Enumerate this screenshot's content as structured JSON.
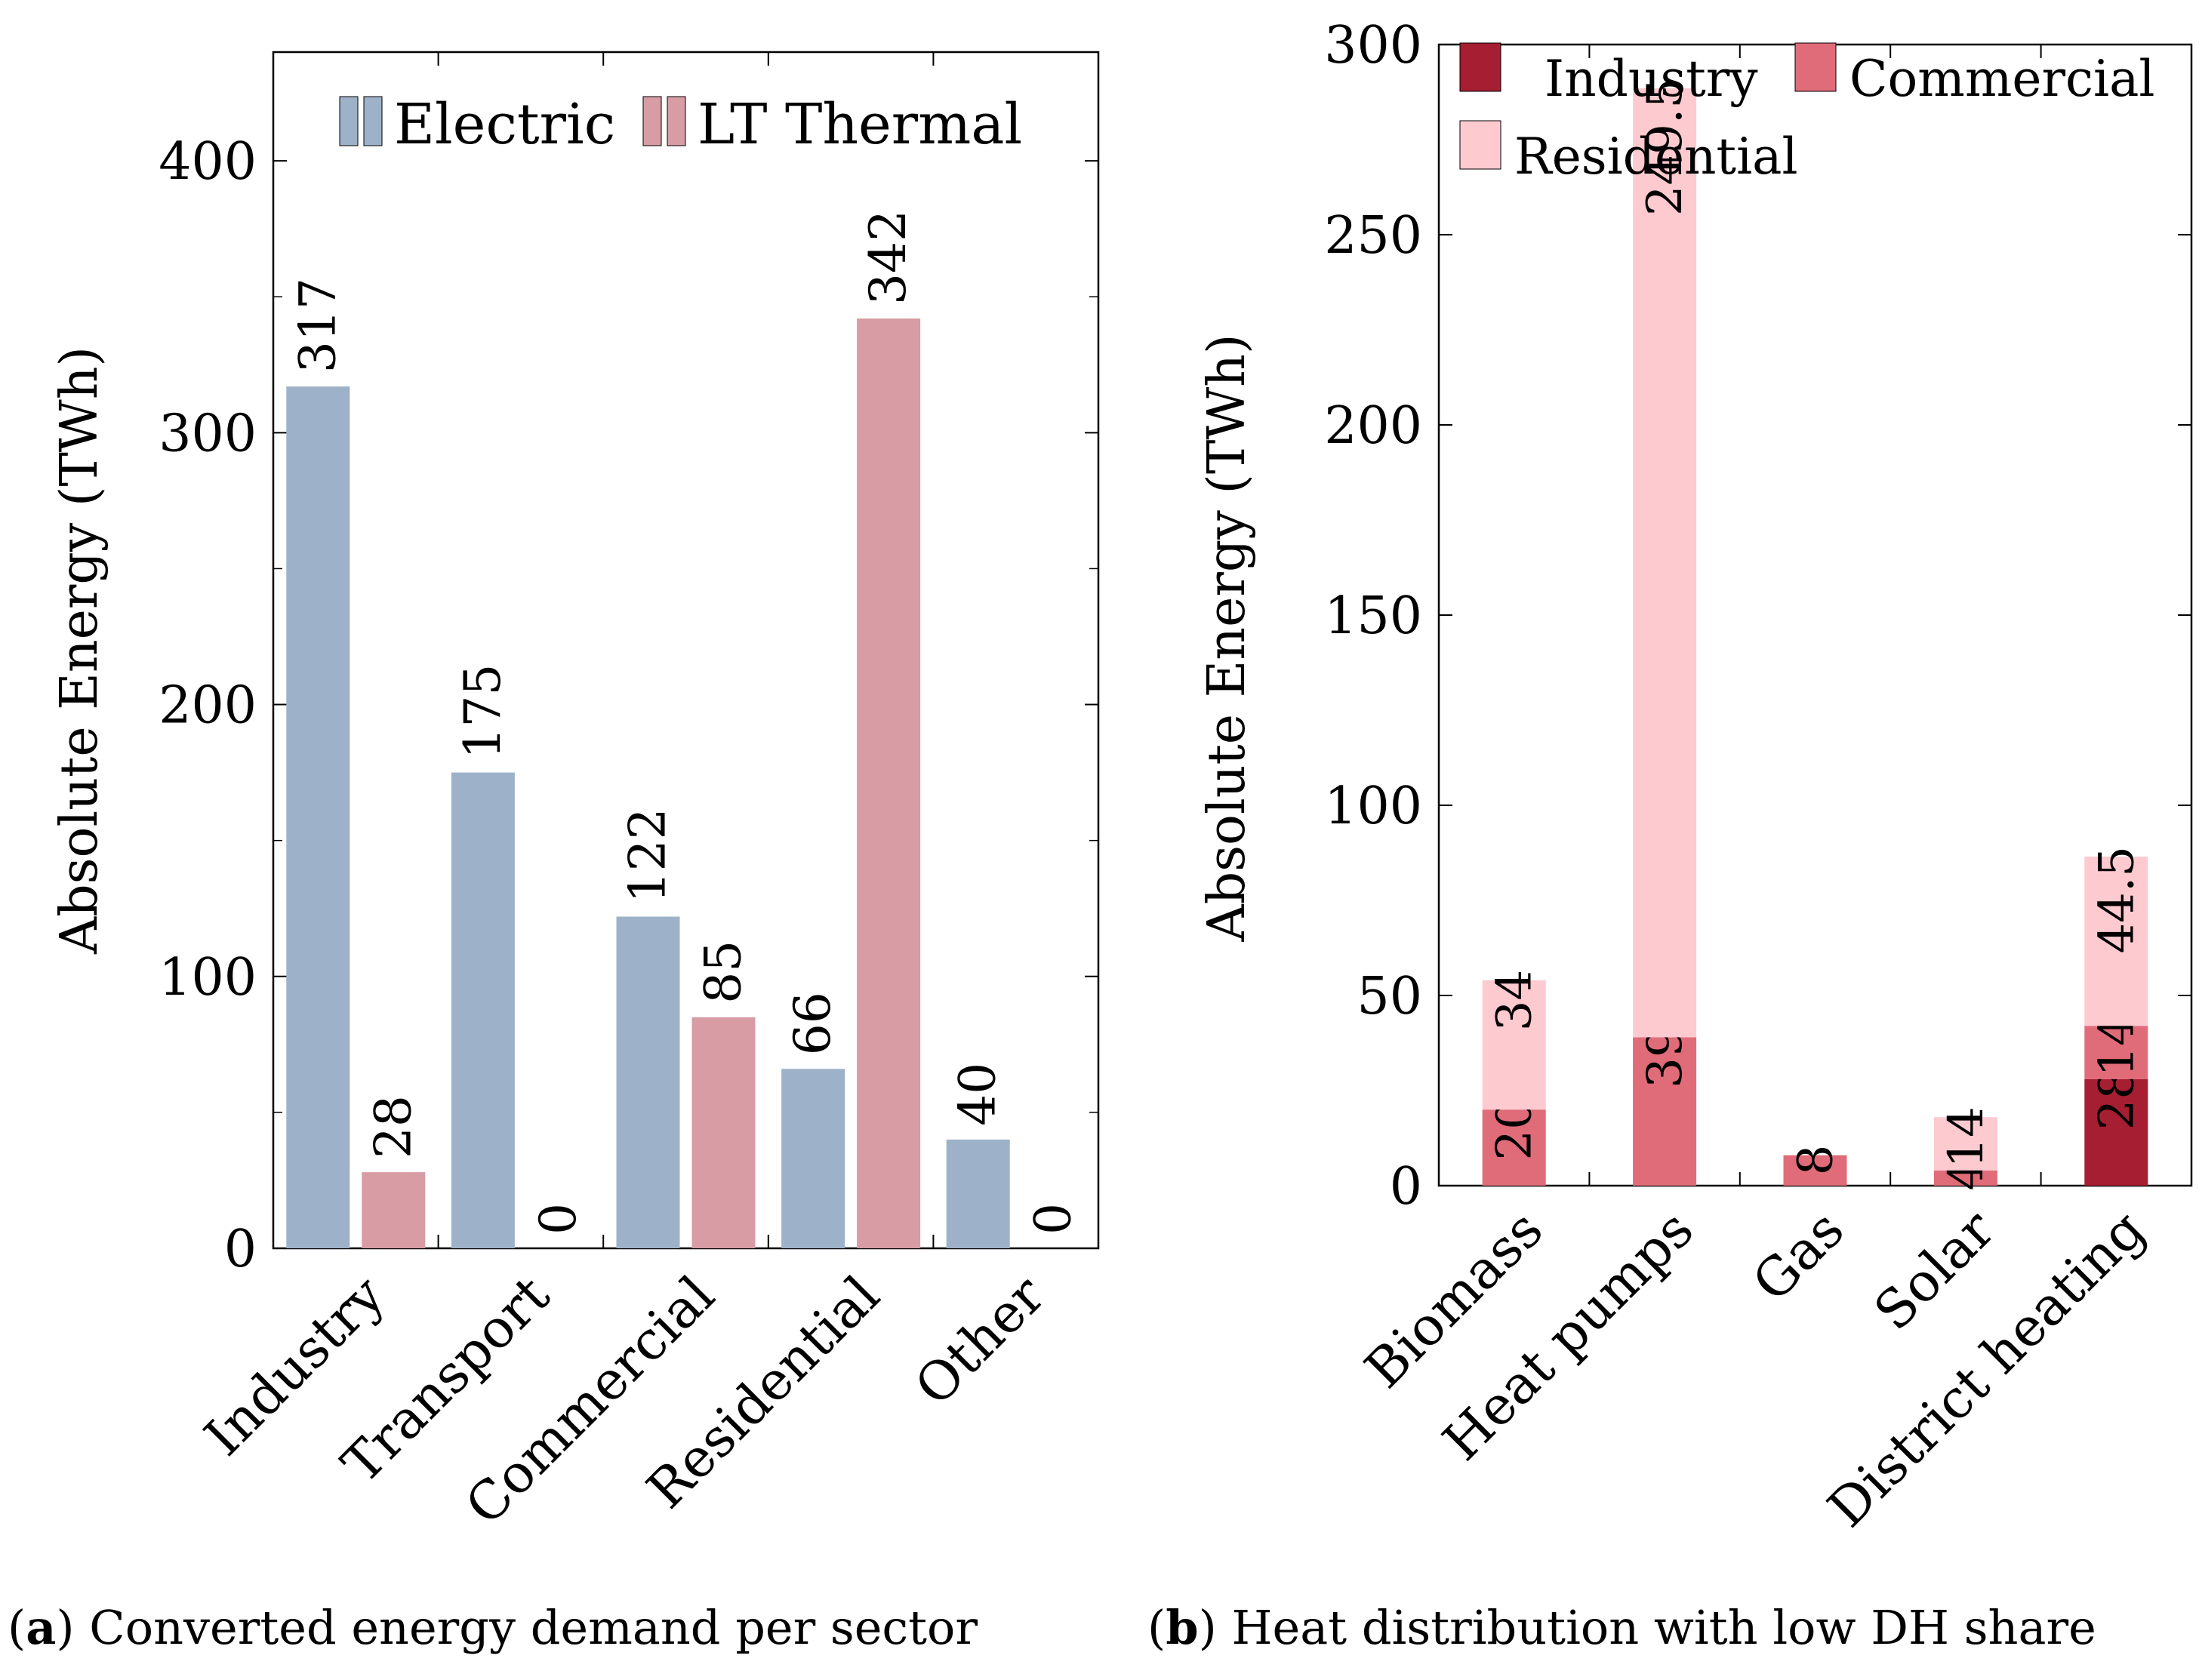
{
  "chart_data": [
    {
      "type": "bar",
      "subtype": "grouped",
      "caption_letter": "a",
      "caption_text": "Converted energy demand per sector",
      "ylabel": "Absolute Energy (TWh)",
      "xlabel": "",
      "ylim": [
        0,
        440
      ],
      "yticks": [
        0,
        100,
        200,
        300,
        400
      ],
      "grid": false,
      "legend_position": "top-right",
      "categories": [
        "Industry",
        "Transport",
        "Commercial",
        "Residential",
        "Other"
      ],
      "series": [
        {
          "name": "Electric",
          "color": "#9DB2C9",
          "values": [
            317,
            175,
            122,
            66,
            40
          ]
        },
        {
          "name": "LT Thermal",
          "color": "#D79CA4",
          "values": [
            28,
            0,
            85,
            342,
            0
          ]
        }
      ]
    },
    {
      "type": "bar",
      "subtype": "stacked",
      "caption_letter": "b",
      "caption_text": "Heat distribution with low DH share",
      "ylabel": "Absolute Energy (TWh)",
      "xlabel": "",
      "ylim": [
        0,
        300
      ],
      "yticks": [
        0,
        50,
        100,
        150,
        200,
        250,
        300
      ],
      "grid": false,
      "legend_position": "top",
      "categories": [
        "Biomass",
        "Heat pumps",
        "Gas",
        "Solar",
        "District heating"
      ],
      "series": [
        {
          "name": "Industry",
          "color": "#A61E31",
          "values": [
            0,
            0,
            0,
            0,
            28
          ],
          "labels": [
            "",
            "",
            "",
            "",
            "28"
          ]
        },
        {
          "name": "Commercial",
          "color": "#E06B79",
          "values": [
            20,
            39,
            8,
            4,
            14
          ],
          "labels": [
            "20",
            "39",
            "8",
            "4",
            "14"
          ]
        },
        {
          "name": "Residential",
          "color": "#FDCACF",
          "values": [
            34,
            249.5,
            0,
            14,
            44.5
          ],
          "labels": [
            "34",
            "249.5",
            "",
            "14",
            "44.5"
          ]
        }
      ]
    }
  ]
}
